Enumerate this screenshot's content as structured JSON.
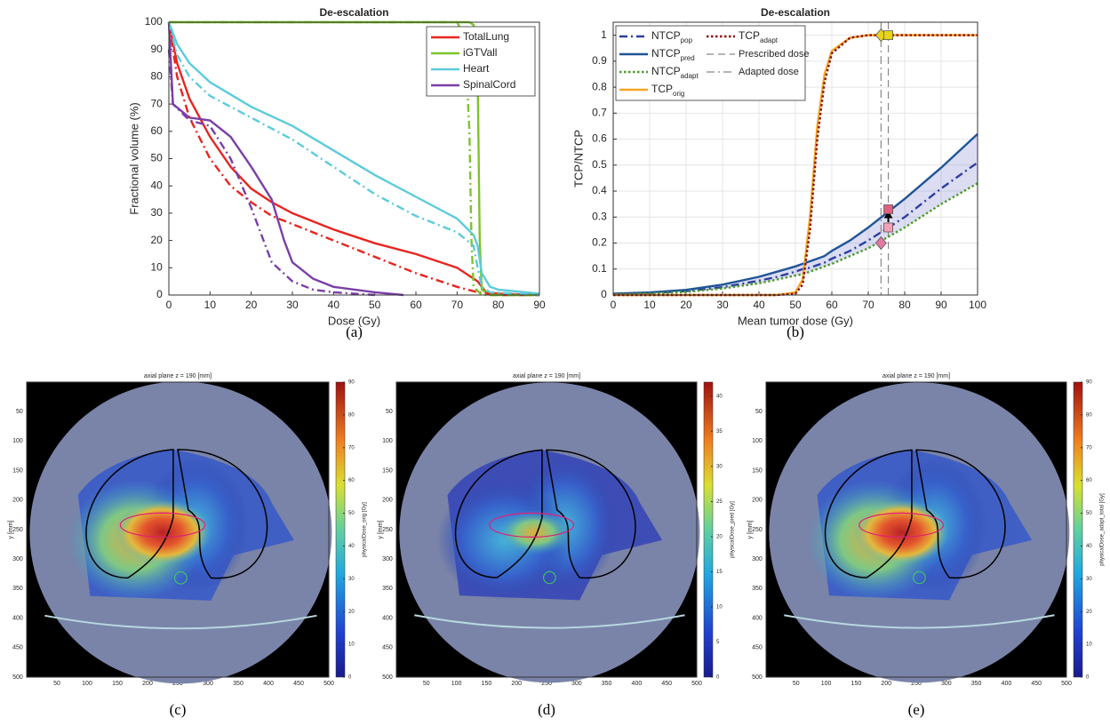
{
  "chart_data": [
    {
      "type": "line",
      "title": "De-escalation",
      "caption": "(a)",
      "xlabel": "Dose (Gy)",
      "ylabel": "Fractional volume (%)",
      "xlim": [
        0,
        90
      ],
      "xticks": [
        0,
        10,
        20,
        30,
        40,
        50,
        60,
        70,
        80,
        90
      ],
      "ylim": [
        0,
        100
      ],
      "yticks": [
        0,
        10,
        20,
        30,
        40,
        50,
        60,
        70,
        80,
        90,
        100
      ],
      "grid": false,
      "legend": "upper right",
      "series": [
        {
          "name": "TotalLung",
          "color": "#e8251f",
          "style": "solid",
          "x": [
            0,
            2,
            5,
            10,
            15,
            20,
            25,
            30,
            40,
            50,
            60,
            70,
            75,
            77,
            80,
            90
          ],
          "values": [
            100,
            85,
            72,
            58,
            47,
            39,
            34,
            30,
            24,
            19,
            15,
            10,
            5,
            1,
            0.5,
            0
          ]
        },
        {
          "name": "iGTVall",
          "color": "#7dc42a",
          "style": "solid",
          "x": [
            0,
            73,
            74,
            75,
            75.5,
            76,
            78,
            90
          ],
          "values": [
            100,
            100,
            99,
            80,
            20,
            2,
            0,
            0
          ]
        },
        {
          "name": "Heart",
          "color": "#5ccbdc",
          "style": "solid",
          "x": [
            0,
            2,
            5,
            10,
            20,
            30,
            40,
            50,
            60,
            70,
            74,
            75,
            76,
            78,
            80,
            90
          ],
          "values": [
            100,
            92,
            85,
            78,
            69,
            62,
            53,
            44,
            36,
            28,
            22,
            18,
            8,
            3,
            2,
            0.5
          ]
        },
        {
          "name": "SpinalCord",
          "color": "#7a3fa8",
          "style": "solid",
          "x": [
            0,
            1,
            5,
            10,
            15,
            20,
            25,
            28,
            30,
            35,
            40,
            50,
            57
          ],
          "values": [
            100,
            70,
            65,
            64,
            58,
            47,
            35,
            20,
            12,
            6,
            3,
            1,
            0
          ]
        },
        {
          "color": "#e8251f",
          "style": "dashdot",
          "x": [
            0,
            2,
            5,
            10,
            15,
            20,
            25,
            30,
            40,
            50,
            60,
            70,
            75,
            80,
            90
          ],
          "values": [
            100,
            80,
            65,
            50,
            40,
            34,
            29,
            26,
            20,
            14,
            8,
            3,
            1,
            0,
            0
          ]
        },
        {
          "color": "#7dc42a",
          "style": "dashdot",
          "x": [
            0,
            70,
            71,
            72,
            73,
            73.5,
            74,
            76,
            90
          ],
          "values": [
            100,
            100,
            97,
            90,
            60,
            20,
            3,
            0,
            0
          ]
        },
        {
          "color": "#5ccbdc",
          "style": "dashdot",
          "x": [
            0,
            2,
            5,
            10,
            20,
            30,
            40,
            50,
            60,
            70,
            74,
            75,
            76,
            78,
            90
          ],
          "values": [
            100,
            88,
            80,
            73,
            65,
            57,
            47,
            37,
            29,
            23,
            18,
            10,
            3,
            1,
            0
          ]
        },
        {
          "color": "#7a3fa8",
          "style": "dashdot",
          "x": [
            0,
            1,
            5,
            10,
            15,
            20,
            25,
            30,
            35,
            40,
            50
          ],
          "values": [
            90,
            70,
            64,
            62,
            50,
            32,
            12,
            5,
            2,
            1,
            0
          ]
        }
      ]
    },
    {
      "type": "line",
      "title": "De-escalation",
      "caption": "(b)",
      "xlabel": "Mean tumor dose (Gy)",
      "ylabel": "TCP/NTCP",
      "xlim": [
        0,
        100
      ],
      "xticks": [
        0,
        10,
        20,
        30,
        40,
        50,
        60,
        70,
        80,
        90,
        100
      ],
      "ylim": [
        0,
        1.05
      ],
      "yticks": [
        0,
        0.1,
        0.2,
        0.3,
        0.4,
        0.5,
        0.6,
        0.7,
        0.8,
        0.9,
        1
      ],
      "grid": true,
      "legend": "upper left",
      "series": [
        {
          "name": "NTCP",
          "name_sub": "pop",
          "color": "#2b3f9e",
          "style": "dashdot",
          "x": [
            0,
            10,
            20,
            30,
            40,
            45,
            50,
            52,
            54,
            56,
            58,
            60,
            65,
            70,
            80,
            90,
            100
          ],
          "values": [
            0.003,
            0.008,
            0.015,
            0.03,
            0.055,
            0.07,
            0.09,
            0.1,
            0.105,
            0.115,
            0.125,
            0.14,
            0.17,
            0.21,
            0.3,
            0.41,
            0.51
          ]
        },
        {
          "name": "NTCP",
          "name_sub": "pred",
          "color": "#1f5596",
          "style": "solid",
          "x": [
            0,
            10,
            20,
            30,
            40,
            45,
            50,
            52,
            54,
            56,
            58,
            60,
            65,
            70,
            80,
            90,
            100
          ],
          "values": [
            0.005,
            0.01,
            0.02,
            0.04,
            0.07,
            0.09,
            0.11,
            0.12,
            0.13,
            0.14,
            0.15,
            0.17,
            0.21,
            0.26,
            0.37,
            0.49,
            0.62
          ]
        },
        {
          "name": "NTCP",
          "name_sub": "adapt",
          "color": "#4d9a2a",
          "style": "dotted",
          "x": [
            0,
            10,
            20,
            30,
            40,
            45,
            50,
            52,
            54,
            56,
            58,
            60,
            65,
            70,
            80,
            90,
            100
          ],
          "values": [
            0.002,
            0.006,
            0.012,
            0.025,
            0.045,
            0.06,
            0.075,
            0.08,
            0.09,
            0.1,
            0.11,
            0.12,
            0.15,
            0.18,
            0.26,
            0.35,
            0.43
          ]
        },
        {
          "name": "TCP",
          "name_sub": "orig",
          "color": "#f5a623",
          "style": "solid",
          "x": [
            0,
            10,
            20,
            30,
            40,
            45,
            50,
            52,
            54,
            56,
            58,
            60,
            65,
            70,
            80,
            90,
            100
          ],
          "values": [
            0,
            0,
            0,
            0,
            0,
            0,
            0.01,
            0.06,
            0.3,
            0.65,
            0.85,
            0.94,
            0.99,
            1,
            1,
            1,
            1
          ]
        },
        {
          "name": "TCP",
          "name_sub": "adapt",
          "color": "#8b0a0a",
          "style": "dotted",
          "x": [
            0,
            10,
            20,
            30,
            40,
            45,
            50,
            52,
            54,
            56,
            58,
            60,
            65,
            70,
            80,
            90,
            100
          ],
          "values": [
            0,
            0,
            0,
            0,
            0,
            0,
            0.005,
            0.04,
            0.25,
            0.6,
            0.82,
            0.93,
            0.99,
            1,
            1,
            1,
            1
          ]
        }
      ],
      "vlines": [
        {
          "name": "Prescribed dose",
          "x": 75.5,
          "style": "dashed",
          "color": "#888888"
        },
        {
          "name": "Adapted dose",
          "x": 73.5,
          "style": "dashdot",
          "color": "#888888"
        }
      ],
      "markers": [
        {
          "x": 73.5,
          "y": 1,
          "shape": "diamond",
          "color": "#e8d21a"
        },
        {
          "x": 75.5,
          "y": 1,
          "shape": "square",
          "color": "#e8d21a"
        },
        {
          "x": 75.5,
          "y": 0.26,
          "shape": "square",
          "color": "#f4a0b8"
        },
        {
          "x": 75.5,
          "y": 0.33,
          "shape": "square",
          "color": "#e06080"
        },
        {
          "x": 73.5,
          "y": 0.2,
          "shape": "diamond",
          "color": "#e07aa0"
        }
      ]
    },
    {
      "type": "heatmap",
      "title": "axial plane z = 190 [mm]",
      "caption": "(c)",
      "ylabel": "y [mm]",
      "colorbar_label": "physicalDose_orig [Gy]",
      "xlim": [
        0,
        500
      ],
      "xticks": [
        50,
        100,
        150,
        200,
        250,
        300,
        350,
        400,
        450,
        500
      ],
      "ylim": [
        0,
        500
      ],
      "yticks": [
        50,
        100,
        150,
        200,
        250,
        300,
        350,
        400,
        450,
        500
      ],
      "y_reversed": true,
      "clim": [
        0,
        90
      ],
      "cticks": [
        0,
        10,
        20,
        30,
        40,
        50,
        60,
        70,
        80,
        90
      ]
    },
    {
      "type": "heatmap",
      "title": "axial plane z = 190 [mm]",
      "caption": "(d)",
      "ylabel": "y [mm]",
      "colorbar_label": "physicalDose_pred [Gy]",
      "xlim": [
        0,
        500
      ],
      "xticks": [
        50,
        100,
        150,
        200,
        250,
        300,
        350,
        400,
        450,
        500
      ],
      "ylim": [
        0,
        500
      ],
      "yticks": [
        50,
        100,
        150,
        200,
        250,
        300,
        350,
        400,
        450,
        500
      ],
      "y_reversed": true,
      "clim": [
        0,
        42
      ],
      "cticks": [
        0,
        5,
        10,
        15,
        20,
        25,
        30,
        35,
        40
      ]
    },
    {
      "type": "heatmap",
      "title": "axial plane z = 190 [mm]",
      "caption": "(e)",
      "ylabel": "y [mm]",
      "colorbar_label": "physicalDose_adapt_total [Gy]",
      "xlim": [
        0,
        500
      ],
      "xticks": [
        50,
        100,
        150,
        200,
        250,
        300,
        350,
        400,
        450,
        500
      ],
      "ylim": [
        0,
        500
      ],
      "yticks": [
        50,
        100,
        150,
        200,
        250,
        300,
        350,
        400,
        450,
        500
      ],
      "y_reversed": true,
      "clim": [
        0,
        90
      ],
      "cticks": [
        0,
        10,
        20,
        30,
        40,
        50,
        60,
        70,
        80,
        90
      ]
    }
  ]
}
